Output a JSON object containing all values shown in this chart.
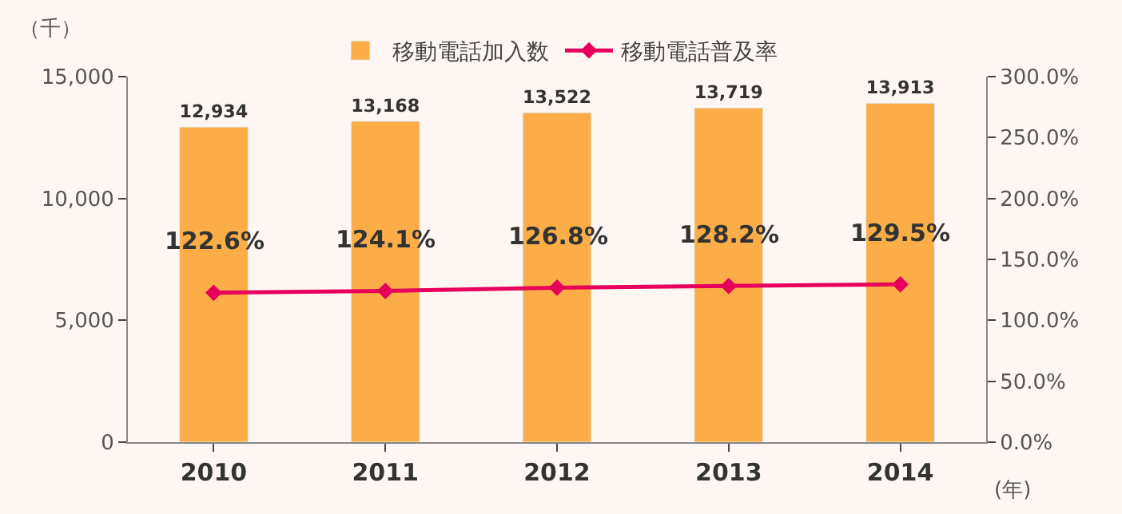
{
  "chart_data": {
    "type": "bar",
    "categories": [
      "2010",
      "2011",
      "2012",
      "2013",
      "2014"
    ],
    "ylabel": "（千）",
    "xlabel": "(年)",
    "series": [
      {
        "name": "移動電話加入数",
        "color": "#fbae48",
        "values": [
          12934,
          13168,
          13522,
          13719,
          13913
        ],
        "value_labels": [
          "12,934",
          "13,168",
          "13,522",
          "13,719",
          "13,913"
        ]
      },
      {
        "name": "移動電話普及率",
        "type": "line",
        "axis": "y2",
        "color": "#e6005c",
        "values": [
          122.6,
          124.1,
          126.8,
          128.2,
          129.5
        ],
        "value_labels": [
          "122.6%",
          "124.1%",
          "126.8%",
          "128.2%",
          "129.5%"
        ]
      }
    ],
    "ylim": [
      0,
      15000
    ],
    "yticks": [
      0,
      {
        "value": 5000,
        "label": "5,000"
      },
      {
        "value": 10000,
        "label": "10,000"
      },
      {
        "value": 15000,
        "label": "15,000"
      }
    ],
    "y2lim": [
      0,
      300
    ],
    "y2ticks": [
      {
        "value": 0,
        "label": "0.0%"
      },
      {
        "value": 50,
        "label": "50.0%"
      },
      {
        "value": 100,
        "label": "100.0%"
      },
      {
        "value": 150,
        "label": "150.0%"
      },
      {
        "value": 200,
        "label": "200.0%"
      },
      {
        "value": 250,
        "label": "250.0%"
      },
      {
        "value": 300,
        "label": "300.0%"
      }
    ],
    "data_labels": true,
    "grid": false,
    "legend": "top",
    "marker": "diamond",
    "line_style": "solid"
  }
}
